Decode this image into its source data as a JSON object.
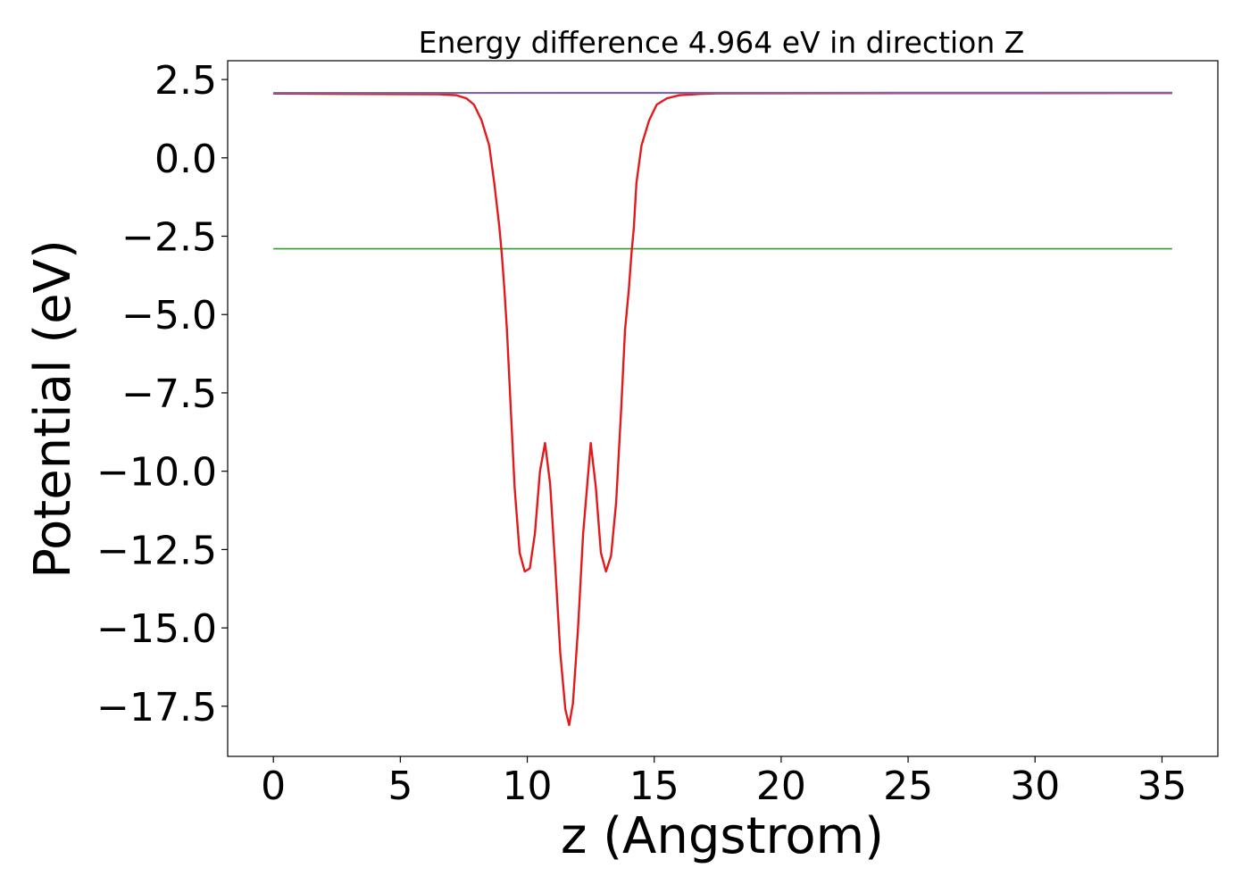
{
  "chart_data": {
    "type": "line",
    "title": "Energy difference 4.964 eV in direction Z",
    "xlabel": "z (Angstrom)",
    "ylabel": "Potential (eV)",
    "xlim": [
      -1.8,
      37.2
    ],
    "ylim": [
      -19.1,
      3.1
    ],
    "x_ticks": [
      0,
      5,
      10,
      15,
      20,
      25,
      30,
      35
    ],
    "x_tick_labels": [
      "0",
      "5",
      "10",
      "15",
      "20",
      "25",
      "30",
      "35"
    ],
    "y_ticks": [
      2.5,
      0,
      -2.5,
      -5,
      -7.5,
      -10,
      -12.5,
      -15,
      -17.5
    ],
    "y_tick_labels": [
      "2.5",
      "0.0",
      "−2.5",
      "−5.0",
      "−7.5",
      "−10.0",
      "−12.5",
      "−15.0",
      "−17.5"
    ],
    "grid": false,
    "legend": "none",
    "colors": {
      "vacuum_level": "#1f77b4",
      "fermi_level": "#2ca02c",
      "potential": "#e31a1c",
      "planar_average": "#7b65a8"
    },
    "series": [
      {
        "x": [
          0,
          35.4
        ],
        "y": [
          2.07,
          2.07
        ]
      },
      {
        "x": [
          0,
          35.4
        ],
        "y": [
          -2.9,
          -2.9
        ]
      },
      {
        "x": [
          0,
          6.5,
          7.2,
          7.6,
          7.9,
          8.2,
          8.5,
          8.7,
          8.9,
          9.0,
          9.1,
          9.2,
          9.35,
          9.5,
          9.7,
          9.9,
          10.1,
          10.3,
          10.5,
          10.7,
          10.9,
          11.1,
          11.3,
          11.5,
          11.65,
          11.8,
          12.0,
          12.2,
          12.5,
          12.7,
          12.9,
          13.1,
          13.3,
          13.5,
          13.7,
          13.85,
          14.0,
          14.1,
          14.2,
          14.3,
          14.5,
          14.8,
          15.1,
          15.5,
          16.0,
          16.8,
          17.5,
          35.4
        ],
        "y": [
          2.05,
          2.03,
          2.0,
          1.9,
          1.7,
          1.2,
          0.4,
          -0.8,
          -2.2,
          -3.1,
          -4.2,
          -5.5,
          -8.0,
          -10.5,
          -12.6,
          -13.2,
          -13.1,
          -12.0,
          -10.0,
          -9.1,
          -10.4,
          -13.0,
          -15.8,
          -17.6,
          -18.1,
          -17.4,
          -15.0,
          -12.0,
          -9.1,
          -10.5,
          -12.6,
          -13.2,
          -12.7,
          -11.0,
          -8.0,
          -5.5,
          -4.2,
          -3.1,
          -2.2,
          -0.8,
          0.4,
          1.2,
          1.7,
          1.9,
          2.0,
          2.04,
          2.06,
          2.07
        ]
      },
      {
        "x": [
          0,
          35.4
        ],
        "y": [
          2.07,
          2.08
        ]
      }
    ]
  }
}
